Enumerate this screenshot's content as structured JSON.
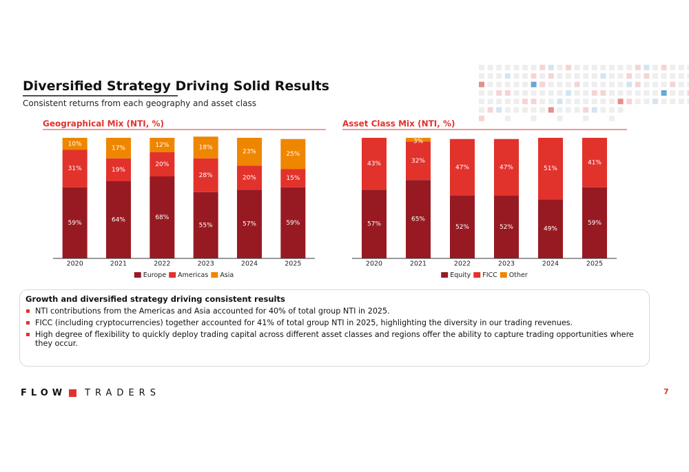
{
  "header": {
    "title": "Diversified Strategy Driving Solid Results",
    "subtitle": "Consistent returns from each geography and asset class"
  },
  "chart_data": [
    {
      "type": "bar",
      "stacked": true,
      "title": "Geographical Mix (NTI, %)",
      "categories": [
        "2020",
        "2021",
        "2022",
        "2023",
        "2024",
        "2025"
      ],
      "series": [
        {
          "name": "Europe",
          "color": "#971a22",
          "values": [
            59,
            64,
            68,
            55,
            57,
            59
          ],
          "value_labels": [
            "59%",
            "64%",
            "68%",
            "55%",
            "57%",
            "59%"
          ]
        },
        {
          "name": "Americas",
          "color": "#e2322c",
          "values": [
            31,
            19,
            20,
            28,
            20,
            15
          ],
          "value_labels": [
            "31%",
            "19%",
            "20%",
            "28%",
            "20%",
            "15%"
          ]
        },
        {
          "name": "Asia",
          "color": "#ee8600",
          "values": [
            10,
            17,
            12,
            18,
            23,
            25
          ],
          "value_labels": [
            "10%",
            "17%",
            "12%",
            "18%",
            "23%",
            "25%"
          ]
        }
      ],
      "ylim": [
        0,
        100
      ],
      "legend": "bottom"
    },
    {
      "type": "bar",
      "stacked": true,
      "title": "Asset Class Mix (NTI, %)",
      "categories": [
        "2020",
        "2021",
        "2022",
        "2023",
        "2024",
        "2025"
      ],
      "series": [
        {
          "name": "Equity",
          "color": "#971a22",
          "values": [
            57,
            65,
            52,
            52,
            49,
            59
          ],
          "value_labels": [
            "57%",
            "65%",
            "52%",
            "52%",
            "49%",
            "59%"
          ]
        },
        {
          "name": "FICC",
          "color": "#e2322c",
          "values": [
            43,
            32,
            47,
            47,
            51,
            41
          ],
          "value_labels": [
            "43%",
            "32%",
            "47%",
            "47%",
            "51%",
            "41%"
          ]
        },
        {
          "name": "Other",
          "color": "#ee8600",
          "values": [
            null,
            3,
            null,
            null,
            null,
            null
          ],
          "value_labels": [
            null,
            "3%",
            null,
            null,
            null,
            null
          ]
        }
      ],
      "ylim": [
        0,
        100
      ],
      "legend": "bottom"
    }
  ],
  "notes": {
    "heading": "Growth and diversified strategy driving consistent results",
    "bullets": [
      "NTI contributions from the Americas and Asia accounted for 40% of total group NTI in 2025.",
      "FICC (including cryptocurrencies) together accounted for 41% of total group NTI in 2025, highlighting the diversity in our trading revenues.",
      "High degree of flexibility to quickly deploy trading capital across different asset classes and regions offer the ability to capture trading opportunities where they occur."
    ]
  },
  "footer": {
    "logo_left": "FLOW",
    "logo_right": "TRADERS",
    "page_number": "7"
  }
}
